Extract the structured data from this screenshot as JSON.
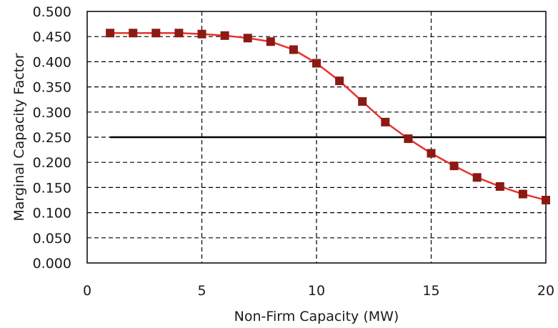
{
  "chart_data": {
    "type": "line",
    "title": "",
    "xlabel": "Non-Firm Capacity (MW)",
    "ylabel": "Marginal Capacity Factor",
    "xlim": [
      0,
      20
    ],
    "ylim": [
      0,
      0.5
    ],
    "x_ticks": [
      0,
      5,
      10,
      15,
      20
    ],
    "y_ticks": [
      0,
      0.05,
      0.1,
      0.15,
      0.2,
      0.25,
      0.3,
      0.35,
      0.4,
      0.45,
      0.5
    ],
    "grid": "dashed",
    "legend": "none",
    "series": [
      {
        "type": "line",
        "color": "#e8322b",
        "marker_color": "#8b1a14",
        "marker": "square",
        "x": [
          1,
          2,
          3,
          4,
          5,
          6,
          7,
          8,
          9,
          10,
          11,
          12,
          13,
          14,
          15,
          16,
          17,
          18,
          19,
          20
        ],
        "y": [
          0.457,
          0.457,
          0.457,
          0.457,
          0.455,
          0.452,
          0.447,
          0.44,
          0.424,
          0.397,
          0.362,
          0.321,
          0.28,
          0.247,
          0.218,
          0.193,
          0.17,
          0.152,
          0.137,
          0.125
        ]
      },
      {
        "type": "line",
        "color": "#000000",
        "marker": "none",
        "x": [
          1,
          20
        ],
        "y": [
          0.25,
          0.25
        ]
      }
    ]
  }
}
